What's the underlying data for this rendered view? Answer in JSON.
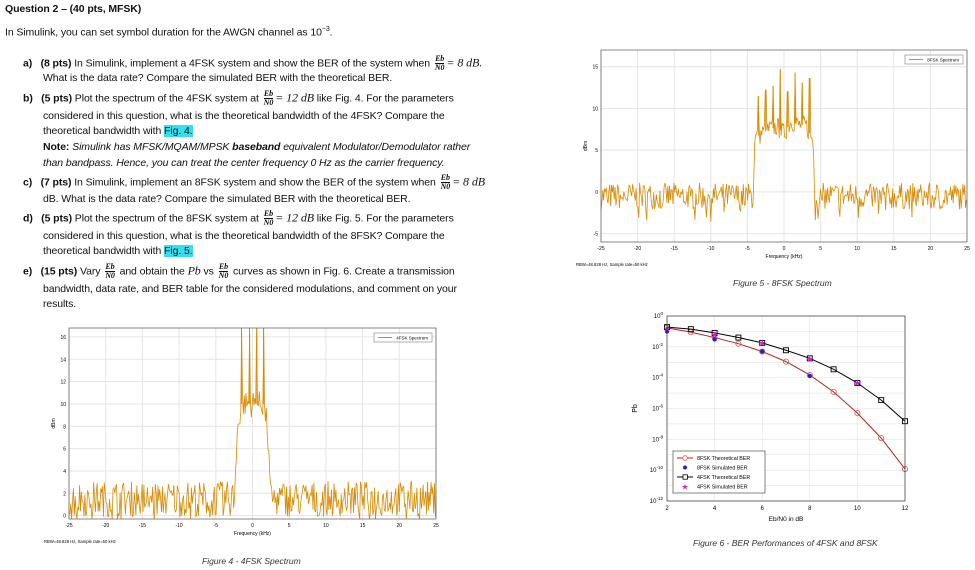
{
  "question": {
    "title": "Question 2 – (40 pts, MFSK)",
    "intro": "In Simulink, you can set symbol duration for the AWGN channel as 10",
    "intro_exp": "−3",
    "eb": "Eb",
    "n0": "N0",
    "a": {
      "label": "a)",
      "pts": "(8 pts)",
      "t1": " In Simulink, implement a 4FSK system and show the BER of the system when ",
      "m1": "= 8 dB.",
      "t2": "What is the data rate?  Compare the simulated BER with the theoretical BER."
    },
    "b": {
      "label": "b)",
      "pts": "(5 pts)",
      "t1": " Plot the spectrum of the 4FSK system at ",
      "m1": "= 12 dB",
      "t2": " like Fig. 4. For the parameters",
      "t3": "considered in this question, what is the theoretical bandwidth of the 4FSK? Compare the",
      "t4": "theoretical bandwidth with ",
      "ref": "Fig. 4.",
      "note_label": "Note:",
      "note1": " Simulink has MFSK/MQAM/MPSK ",
      "note_bold": "baseband",
      "note2": " equivalent Modulator/Demodulator rather",
      "note3": "than bandpass. Hence, you can treat the center frequency 0 Hz as the carrier frequency."
    },
    "c": {
      "label": "c)",
      "pts": "(7 pts)",
      "t1": " In Simulink, implement an 8FSK system and show the BER of the system when ",
      "m1": "= 8 dB",
      "t2": "dB. What is the data rate? Compare the simulated BER with the theoretical BER."
    },
    "d": {
      "label": "d)",
      "pts": "(5 pts)",
      "t1": " Plot the spectrum of the 8FSK system at ",
      "m1": "= 12 dB",
      "t2": " like Fig. 5. For the parameters",
      "t3": "considered in this question, what is the theoretical bandwidth of the 8FSK?  Compare the",
      "t4": "theoretical bandwidth with ",
      "ref": "Fig. 5."
    },
    "e": {
      "label": "e)",
      "pts": "(15 pts)",
      "t1": " Vary ",
      "t2": " and obtain the ",
      "pb": "Pb",
      "t3": " vs ",
      "t4": " curves as shown in Fig. 6. Create a transmission",
      "t5": "bandwidth, data rate, and BER table for the considered modulations, and comment on your",
      "t6": "results."
    }
  },
  "chart_data": [
    {
      "id": "fig5",
      "type": "line",
      "caption": "Figure 5 - 8FSK Spectrum",
      "xlabel": "Frequency (kHz)",
      "ylabel": "dBm",
      "footer": "RBW=48.828 Hz, Sample rate=50 kHz",
      "xlim": [
        -25,
        25
      ],
      "ylim": [
        -6,
        17
      ],
      "xticks": [
        -25,
        -20,
        -15,
        -10,
        -5,
        0,
        5,
        10,
        15,
        20,
        25
      ],
      "yticks": [
        -5,
        0,
        5,
        10,
        15
      ],
      "grid": true,
      "legend": "top-right",
      "series": [
        {
          "name": "8FSK Spectrum",
          "color": "#d88a00",
          "x": [
            -25,
            -4.2,
            -4,
            -3,
            -2,
            -1,
            0,
            1,
            2,
            3,
            4,
            4.2,
            25
          ],
          "y": [
            -0.5,
            -0.5,
            6.5,
            7,
            7.5,
            7.8,
            7,
            8.5,
            8,
            8,
            6,
            -0.5,
            -0.5
          ],
          "peaks_x": [
            -3.5,
            -2.5,
            -1.5,
            -0.5,
            0.5,
            1.5,
            2.5,
            3.5
          ],
          "peaks_y": [
            11.5,
            12.2,
            12.7,
            14.7,
            12,
            14.3,
            13.1,
            13.6
          ]
        }
      ]
    },
    {
      "id": "fig4",
      "type": "line",
      "caption": "Figure 4 - 4FSK Spectrum",
      "xlabel": "Frequency (kHz)",
      "ylabel": "dBm",
      "footer": "RBW=48.828 Hz, Sample rate=50 kHz",
      "xlim": [
        -25,
        25
      ],
      "ylim": [
        -0.3,
        16.8
      ],
      "xticks": [
        -25,
        -20,
        -15,
        -10,
        -5,
        0,
        5,
        10,
        15,
        20,
        25
      ],
      "yticks": [
        0,
        2,
        4,
        6,
        8,
        10,
        12,
        14,
        16
      ],
      "grid": true,
      "legend": "top-right",
      "series": [
        {
          "name": "4FSK Spectrum",
          "color": "#d88a00",
          "x": [
            -25,
            -2.5,
            -2,
            -1.5,
            0,
            1.5,
            2,
            2.5,
            25
          ],
          "y": [
            1.5,
            1.5,
            8,
            10,
            10,
            10,
            8,
            1.5,
            1.5
          ],
          "peaks_x": [
            -1.5,
            -0.4,
            0.6,
            1.5
          ],
          "peaks_y": [
            17,
            17,
            17,
            17
          ]
        }
      ]
    },
    {
      "id": "fig6",
      "type": "line",
      "caption": "Figure 6 - BER Performances of 4FSK and 8FSK",
      "xlabel": "Eb/N0 in dB",
      "ylabel": "Pb",
      "xlim": [
        2,
        12
      ],
      "ylim": [
        1e-12,
        1
      ],
      "yscale": "log",
      "xticks": [
        2,
        4,
        6,
        8,
        10,
        12
      ],
      "yticks": [
        "10^0",
        "10^-2",
        "10^-4",
        "10^-6",
        "10^-8",
        "10^-10",
        "10^-12"
      ],
      "grid": true,
      "legend": "bottom-left",
      "series": [
        {
          "name": "8FSK Theoretical BER",
          "color": "#b22222",
          "marker": "circle",
          "x": [
            2,
            3,
            4,
            5,
            6,
            7,
            8,
            9,
            10,
            11,
            12
          ],
          "y": [
            0.17,
            0.09,
            0.04,
            0.016,
            0.005,
            0.0011,
            0.00015,
            1.2e-05,
            5e-07,
            1.2e-08,
            1.2e-10
          ]
        },
        {
          "name": "8FSK Simulated BER",
          "color": "#2222cc",
          "marker": "dot",
          "x": [
            2,
            4,
            6,
            8
          ],
          "y": [
            0.1,
            0.03,
            0.005,
            0.00013
          ]
        },
        {
          "name": "4FSK Theoretical BER",
          "color": "#000000",
          "marker": "square",
          "x": [
            2,
            3,
            4,
            5,
            6,
            7,
            8,
            9,
            10,
            11,
            12
          ],
          "y": [
            0.19,
            0.14,
            0.08,
            0.04,
            0.018,
            0.006,
            0.0018,
            0.00035,
            4.5e-05,
            3.5e-06,
            1.5e-07
          ]
        },
        {
          "name": "4FSK Simulated BER",
          "color": "#cc22cc",
          "marker": "star",
          "x": [
            2,
            4,
            6,
            8,
            10
          ],
          "y": [
            0.15,
            0.06,
            0.018,
            0.0016,
            4.5e-05
          ]
        }
      ]
    }
  ]
}
